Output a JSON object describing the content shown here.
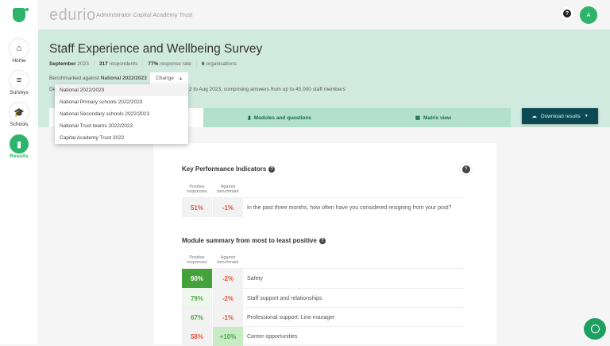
{
  "app": {
    "brand": "edurio",
    "org": "Administrator Capital Academy Trust",
    "avatar_initial": "A",
    "accent": "#2db36b"
  },
  "sidebar": {
    "items": [
      {
        "label": "Home",
        "icon": "home-icon"
      },
      {
        "label": "Surveys",
        "icon": "checklist-icon"
      },
      {
        "label": "Schools",
        "icon": "graduation-cap-icon"
      },
      {
        "label": "Results",
        "icon": "bar-chart-icon",
        "active": true
      }
    ]
  },
  "header": {
    "title": "Staff Experience and Wellbeing Survey",
    "meta": {
      "month": "September",
      "year": "2023",
      "respondents_n": "317",
      "respondents_l": "respondents",
      "rate_n": "77%",
      "rate_l": "response rate",
      "orgs_n": "6",
      "orgs_l": "organisations"
    },
    "bench_prefix": "Benchmarked against",
    "bench_value": "National 2022/2023",
    "change_label": "Change",
    "desc_start": "De",
    "desc_end": "2 to Aug 2023, comprising answers from up to 45,000 staff members"
  },
  "dropdown": {
    "options": [
      "National 2022/2023",
      "National Primary schools 2022/2023",
      "National Secondary schools 2022/2023",
      "National Trust teams 2022/2023",
      "Capital Academy Trust 2022"
    ],
    "selected": "National 2022/2023"
  },
  "tabs": [
    {
      "label": "",
      "active": true
    },
    {
      "label": "Modules and questions"
    },
    {
      "label": "Matrix view"
    }
  ],
  "download_label": "Download results",
  "kpi": {
    "title": "Key Performance Indicators",
    "col1": "Positive responses",
    "col2": "Against benchmark",
    "rows": [
      {
        "pos": "51%",
        "bench": "-1%",
        "label": "In the past three months, how often have you considered resigning from your post?"
      }
    ]
  },
  "modules": {
    "title": "Module summary from most to least positive",
    "col1": "Positive responses",
    "col2": "Against benchmark",
    "rows": [
      {
        "pos": "90%",
        "bench": "-2%",
        "label": "Safety"
      },
      {
        "pos": "79%",
        "bench": "-2%",
        "label": "Staff support and relationships"
      },
      {
        "pos": "67%",
        "bench": "-1%",
        "label": "Professional support: Line manager"
      },
      {
        "pos": "58%",
        "bench": "+10%",
        "label": "Career opportunities"
      }
    ]
  }
}
